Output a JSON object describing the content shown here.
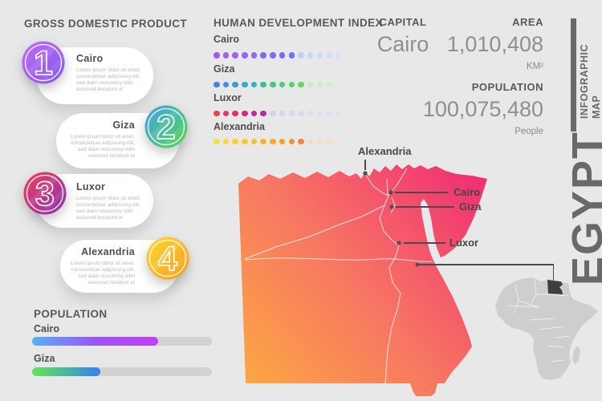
{
  "page": {
    "background": "#e8e8e8"
  },
  "gdp": {
    "heading": "GROSS DOMESTIC PRODUCT",
    "lorem": "Lorem ipsum dolor sit amet, consectetuer adipiscing elit, sed diam nonummy nibh euismod tincidunt ut",
    "items": [
      {
        "number": "1",
        "city": "Cairo",
        "align": "left",
        "gradient": [
          "#c06cf2",
          "#8456f2"
        ]
      },
      {
        "number": "2",
        "city": "Giza",
        "align": "right",
        "gradient": [
          "#3fa0e8",
          "#55d94e"
        ]
      },
      {
        "number": "3",
        "city": "Luxor",
        "align": "left",
        "gradient": [
          "#ef4056",
          "#8e2fb8"
        ]
      },
      {
        "number": "4",
        "city": "Alexandria",
        "align": "right",
        "gradient": [
          "#fed933",
          "#f59c1b"
        ]
      }
    ]
  },
  "hdi": {
    "heading": "HUMAN DEVELOPMENT INDEX",
    "rows": [
      {
        "city": "Cairo",
        "solid_dots": 9,
        "total_dots": 14,
        "dots": [
          "#a456f0",
          "#a65bf2",
          "#a061f2",
          "#9865f2",
          "#8f67f2",
          "#8669f2",
          "#7e6af2",
          "#776cf3",
          "#6f6df3",
          "#c2cff2",
          "#c7d5f3",
          "#ccdaf5",
          "#d1dff6",
          "#d6e3f7"
        ]
      },
      {
        "city": "Giza",
        "solid_dots": 10,
        "total_dots": 14,
        "dots": [
          "#3e84e8",
          "#3c92e0",
          "#399fd5",
          "#36acc7",
          "#34b7b2",
          "#36c09b",
          "#3dc884",
          "#47cf72",
          "#53d564",
          "#5fda5b",
          "#c5ebc9",
          "#caedcc",
          "#cfefd1",
          "#d5f1d6"
        ]
      },
      {
        "city": "Luxor",
        "solid_dots": 6,
        "total_dots": 14,
        "dots": [
          "#e94350",
          "#e53a5e",
          "#de326e",
          "#d22b80",
          "#c22a92",
          "#ae2da0",
          "#dbcfeb",
          "#ddd2ed",
          "#dfd4ee",
          "#e0d6f0",
          "#e2d9f1",
          "#e3dbf2",
          "#e5ddf3",
          "#e6dff4"
        ]
      },
      {
        "city": "Alexandria",
        "solid_dots": 10,
        "total_dots": 14,
        "dots": [
          "#f6e23c",
          "#f7db38",
          "#f7d234",
          "#f7c931",
          "#f6bf2e",
          "#f5b52c",
          "#f3ab2b",
          "#f1a02b",
          "#ef942c",
          "#ec882e",
          "#f2dcc5",
          "#f3dec8",
          "#f4e1cc",
          "#f5e3d0"
        ]
      }
    ]
  },
  "stats": {
    "capital_label": "CAPITAL",
    "capital_value": "Cairo",
    "area_label": "AREA",
    "area_value": "1,010,408",
    "area_unit": "KM²",
    "population_label": "POPULATION",
    "population_value": "100,075,480",
    "population_unit": "People"
  },
  "side": {
    "title": "EGYPT",
    "subtitle": "INFOGRAPHIC\nMAP"
  },
  "map": {
    "city_labels": [
      {
        "name": "Alexandria"
      },
      {
        "name": "Cairo"
      },
      {
        "name": "Giza"
      },
      {
        "name": "Luxor"
      }
    ],
    "gradient": [
      "#fcae3e",
      "#f77663",
      "#ef2a74"
    ],
    "minimap_land": "#cecece",
    "minimap_highlight": "#3e3e3e"
  },
  "population_bars": {
    "heading": "POPULATION",
    "bars": [
      {
        "city": "Cairo",
        "percent": 70,
        "gradient": [
          "#59b1f2",
          "#9a55f5",
          "#c43ef5"
        ]
      },
      {
        "city": "Giza",
        "percent": 38,
        "gradient": [
          "#67e356",
          "#45b89e",
          "#3b7cf2"
        ]
      }
    ]
  }
}
